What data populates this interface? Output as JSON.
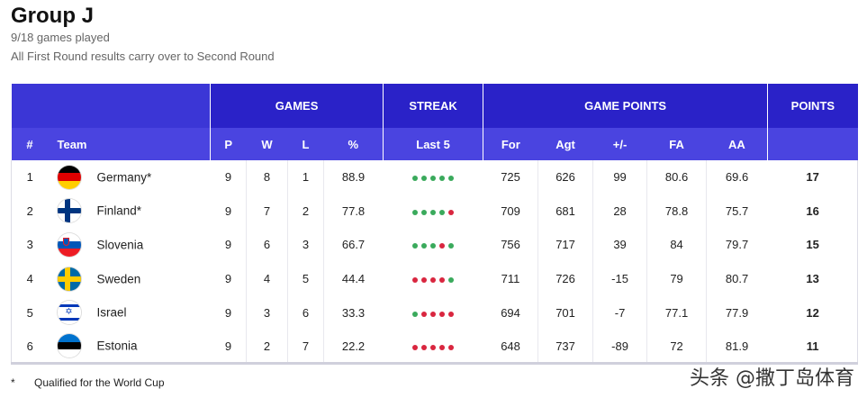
{
  "header": {
    "title": "Group J",
    "games_played": "9/18 games played",
    "note": "All First Round results carry over to Second Round"
  },
  "group_headers": {
    "games": "GAMES",
    "streak": "STREAK",
    "game_points": "GAME POINTS",
    "points": "POINTS"
  },
  "columns": {
    "rank": "#",
    "team": "Team",
    "p": "P",
    "w": "W",
    "l": "L",
    "pct": "%",
    "last5": "Last 5",
    "for": "For",
    "agt": "Agt",
    "diff": "+/-",
    "fa": "FA",
    "aa": "AA"
  },
  "colors": {
    "win": "#3aaa5c",
    "loss": "#d9263f",
    "header_dark": "#2a22c8",
    "header_light": "#4a44e0"
  },
  "rows": [
    {
      "rank": "1",
      "team": "Germany*",
      "flag": "germany-flag-icon",
      "p": "9",
      "w": "8",
      "l": "1",
      "pct": "88.9",
      "streak": [
        "W",
        "W",
        "W",
        "W",
        "W"
      ],
      "for": "725",
      "agt": "626",
      "diff": "99",
      "fa": "80.6",
      "aa": "69.6",
      "pts": "17"
    },
    {
      "rank": "2",
      "team": "Finland*",
      "flag": "finland-flag-icon",
      "p": "9",
      "w": "7",
      "l": "2",
      "pct": "77.8",
      "streak": [
        "W",
        "W",
        "W",
        "W",
        "L"
      ],
      "for": "709",
      "agt": "681",
      "diff": "28",
      "fa": "78.8",
      "aa": "75.7",
      "pts": "16"
    },
    {
      "rank": "3",
      "team": "Slovenia",
      "flag": "slovenia-flag-icon",
      "p": "9",
      "w": "6",
      "l": "3",
      "pct": "66.7",
      "streak": [
        "W",
        "W",
        "W",
        "L",
        "W"
      ],
      "for": "756",
      "agt": "717",
      "diff": "39",
      "fa": "84",
      "aa": "79.7",
      "pts": "15"
    },
    {
      "rank": "4",
      "team": "Sweden",
      "flag": "sweden-flag-icon",
      "p": "9",
      "w": "4",
      "l": "5",
      "pct": "44.4",
      "streak": [
        "L",
        "L",
        "L",
        "L",
        "W"
      ],
      "for": "711",
      "agt": "726",
      "diff": "-15",
      "fa": "79",
      "aa": "80.7",
      "pts": "13"
    },
    {
      "rank": "5",
      "team": "Israel",
      "flag": "israel-flag-icon",
      "p": "9",
      "w": "3",
      "l": "6",
      "pct": "33.3",
      "streak": [
        "W",
        "L",
        "L",
        "L",
        "L"
      ],
      "for": "694",
      "agt": "701",
      "diff": "-7",
      "fa": "77.1",
      "aa": "77.9",
      "pts": "12"
    },
    {
      "rank": "6",
      "team": "Estonia",
      "flag": "estonia-flag-icon",
      "p": "9",
      "w": "2",
      "l": "7",
      "pct": "22.2",
      "streak": [
        "L",
        "L",
        "L",
        "L",
        "L"
      ],
      "for": "648",
      "agt": "737",
      "diff": "-89",
      "fa": "72",
      "aa": "81.9",
      "pts": "11"
    }
  ],
  "footnote": {
    "symbol": "*",
    "text": "Qualified for the World Cup"
  },
  "watermark": "头条 @撒丁岛体育"
}
